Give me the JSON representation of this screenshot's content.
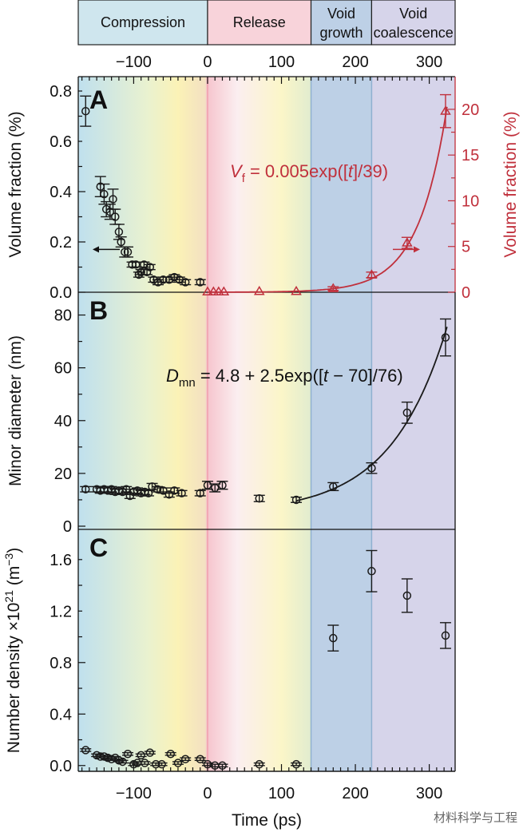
{
  "phases": [
    {
      "label_lines": [
        "Compression"
      ],
      "t_start": -175,
      "t_end": 0,
      "color": "#cfe8f0"
    },
    {
      "label_lines": [
        "Release"
      ],
      "t_start": 0,
      "t_end": 140,
      "color": "#f6cdd6"
    },
    {
      "label_lines": [
        "Void",
        "growth"
      ],
      "t_start": 140,
      "t_end": 222,
      "color": "#bdd0e6"
    },
    {
      "label_lines": [
        "Void",
        "coalescence"
      ],
      "t_start": 222,
      "t_end": 335,
      "color": "#d6d4ea"
    }
  ],
  "colors": {
    "left_series": "#1a1a1a",
    "right_series": "#c0303c",
    "divider": "#8fb0d0"
  },
  "time_axis": {
    "label": "Time (ps)",
    "range": [
      -175,
      335
    ],
    "ticks": [
      -100,
      0,
      100,
      200,
      300
    ],
    "tick_labels": [
      "−100",
      "0",
      "100",
      "200",
      "300"
    ]
  },
  "watermark": "材料科学与工程",
  "chart_data": [
    {
      "panel": "A",
      "type": "scatter",
      "ylabel": "Volume fraction (%)",
      "ylim": [
        0,
        0.8
      ],
      "yticks": [
        0.0,
        0.2,
        0.4,
        0.6,
        0.8
      ],
      "ytick_labels": [
        "0.0",
        "0.2",
        "0.4",
        "0.6",
        "0.8"
      ],
      "y2label": "Volume fraction (%)",
      "y2lim": [
        0,
        22
      ],
      "y2ticks": [
        0,
        5,
        10,
        15,
        20
      ],
      "y2tick_labels": [
        "0",
        "5",
        "10",
        "15",
        "20"
      ],
      "series": [
        {
          "name": "left axis",
          "marker": "circle",
          "axis": "left",
          "points": [
            {
              "t": -165,
              "v": 0.72,
              "err": 0.06
            },
            {
              "t": -145,
              "v": 0.42,
              "err": 0.04
            },
            {
              "t": -140,
              "v": 0.39,
              "err": 0.04
            },
            {
              "t": -137,
              "v": 0.33,
              "err": 0.03
            },
            {
              "t": -132,
              "v": 0.32,
              "err": 0.03
            },
            {
              "t": -128,
              "v": 0.37,
              "err": 0.04
            },
            {
              "t": -125,
              "v": 0.3,
              "err": 0.03
            },
            {
              "t": -120,
              "v": 0.24,
              "err": 0.03
            },
            {
              "t": -117,
              "v": 0.2,
              "err": 0.02
            },
            {
              "t": -112,
              "v": 0.16,
              "err": 0.02
            },
            {
              "t": -108,
              "v": 0.16,
              "err": 0.02
            },
            {
              "t": -102,
              "v": 0.11,
              "err": 0.01
            },
            {
              "t": -97,
              "v": 0.11,
              "err": 0.01
            },
            {
              "t": -93,
              "v": 0.07,
              "err": 0.01
            },
            {
              "t": -90,
              "v": 0.08,
              "err": 0.01
            },
            {
              "t": -86,
              "v": 0.11,
              "err": 0.01
            },
            {
              "t": -82,
              "v": 0.08,
              "err": 0.01
            },
            {
              "t": -78,
              "v": 0.1,
              "err": 0.01
            },
            {
              "t": -73,
              "v": 0.05,
              "err": 0.01
            },
            {
              "t": -67,
              "v": 0.04,
              "err": 0.01
            },
            {
              "t": -60,
              "v": 0.05,
              "err": 0.01
            },
            {
              "t": -52,
              "v": 0.05,
              "err": 0.01
            },
            {
              "t": -45,
              "v": 0.06,
              "err": 0.01
            },
            {
              "t": -38,
              "v": 0.05,
              "err": 0.01
            },
            {
              "t": -30,
              "v": 0.04,
              "err": 0.01
            },
            {
              "t": -10,
              "v": 0.04,
              "err": 0.01
            }
          ]
        },
        {
          "name": "right axis",
          "marker": "triangle",
          "axis": "right",
          "points": [
            {
              "t": 0,
              "v": 0.05,
              "err": 0
            },
            {
              "t": 8,
              "v": 0.05,
              "err": 0
            },
            {
              "t": 15,
              "v": 0.05,
              "err": 0
            },
            {
              "t": 22,
              "v": 0.05,
              "err": 0
            },
            {
              "t": 70,
              "v": 0.1,
              "err": 0
            },
            {
              "t": 120,
              "v": 0.1,
              "err": 0
            },
            {
              "t": 170,
              "v": 0.4,
              "err": 0.2
            },
            {
              "t": 222,
              "v": 1.9,
              "err": 0.3
            },
            {
              "t": 270,
              "v": 5.4,
              "err": 0.6
            },
            {
              "t": 322,
              "v": 19.8,
              "err": 1.8
            }
          ]
        }
      ],
      "fit": {
        "axis": "right",
        "t_from": 0,
        "t_to": 325,
        "a": 0.005,
        "t0": 0,
        "tau": 39,
        "c": 0
      },
      "equation": {
        "lhs": "V",
        "lhs_sub": "f",
        "rhs": " = 0.005exp([",
        "var": "t",
        "rhs2": "]/39)"
      }
    },
    {
      "panel": "B",
      "type": "scatter",
      "ylabel": "Minor diameter (nm)",
      "ylim": [
        0,
        85
      ],
      "yticks": [
        0,
        20,
        40,
        60,
        80
      ],
      "ytick_labels": [
        "0",
        "20",
        "40",
        "60",
        "80"
      ],
      "series": [
        {
          "name": "minor diameter",
          "marker": "circle",
          "axis": "left",
          "points": [
            {
              "t": -165,
              "v": 14,
              "err": 1
            },
            {
              "t": -150,
              "v": 14,
              "err": 1
            },
            {
              "t": -145,
              "v": 13.5,
              "err": 1
            },
            {
              "t": -140,
              "v": 14,
              "err": 1
            },
            {
              "t": -135,
              "v": 13.5,
              "err": 1
            },
            {
              "t": -130,
              "v": 14,
              "err": 1
            },
            {
              "t": -125,
              "v": 13,
              "err": 1
            },
            {
              "t": -120,
              "v": 13.5,
              "err": 1
            },
            {
              "t": -115,
              "v": 13,
              "err": 1
            },
            {
              "t": -110,
              "v": 14,
              "err": 1
            },
            {
              "t": -105,
              "v": 11.5,
              "err": 1
            },
            {
              "t": -100,
              "v": 13,
              "err": 1
            },
            {
              "t": -95,
              "v": 13.5,
              "err": 1
            },
            {
              "t": -90,
              "v": 12.5,
              "err": 1
            },
            {
              "t": -85,
              "v": 13,
              "err": 1
            },
            {
              "t": -80,
              "v": 12.5,
              "err": 1
            },
            {
              "t": -75,
              "v": 15,
              "err": 1.2
            },
            {
              "t": -68,
              "v": 14,
              "err": 1
            },
            {
              "t": -60,
              "v": 13.5,
              "err": 1
            },
            {
              "t": -52,
              "v": 12,
              "err": 1
            },
            {
              "t": -45,
              "v": 13.5,
              "err": 1
            },
            {
              "t": -35,
              "v": 12.5,
              "err": 1
            },
            {
              "t": -10,
              "v": 12.5,
              "err": 1
            },
            {
              "t": 0,
              "v": 15.5,
              "err": 1.5
            },
            {
              "t": 10,
              "v": 14.5,
              "err": 1.5
            },
            {
              "t": 20,
              "v": 15.5,
              "err": 1.5
            },
            {
              "t": 70,
              "v": 10.5,
              "err": 1.2
            },
            {
              "t": 120,
              "v": 10,
              "err": 1
            },
            {
              "t": 170,
              "v": 15,
              "err": 1.5
            },
            {
              "t": 222,
              "v": 22,
              "err": 2
            },
            {
              "t": 270,
              "v": 43,
              "err": 4
            },
            {
              "t": 322,
              "v": 71.5,
              "err": 7
            }
          ]
        }
      ],
      "fit": {
        "axis": "left",
        "t_from": 120,
        "t_to": 325,
        "a": 2.5,
        "t0": 70,
        "tau": 76,
        "c": 4.8
      },
      "equation": {
        "lhs": "D",
        "lhs_sub": "mn",
        "rhs": " = 4.8 + 2.5exp([",
        "var": "t",
        "rhs2": " − 70]/76)"
      }
    },
    {
      "panel": "C",
      "type": "scatter",
      "ylabel": "Number density ×10",
      "ylabel_sup": "21",
      "ylabel_unit": " (m",
      "ylabel_unit_sup": "−3",
      "ylabel_close": ")",
      "ylim": [
        -0.02,
        1.76
      ],
      "yticks": [
        0.0,
        0.4,
        0.8,
        1.2,
        1.6
      ],
      "ytick_labels": [
        "0.0",
        "0.4",
        "0.8",
        "1.2",
        "1.6"
      ],
      "series": [
        {
          "name": "number density",
          "marker": "circle",
          "axis": "left",
          "points": [
            {
              "t": -165,
              "v": 0.12,
              "err": 0.01
            },
            {
              "t": -150,
              "v": 0.08,
              "err": 0.01
            },
            {
              "t": -145,
              "v": 0.07,
              "err": 0.01
            },
            {
              "t": -140,
              "v": 0.07,
              "err": 0.01
            },
            {
              "t": -135,
              "v": 0.06,
              "err": 0.01
            },
            {
              "t": -130,
              "v": 0.05,
              "err": 0.01
            },
            {
              "t": -125,
              "v": 0.06,
              "err": 0.01
            },
            {
              "t": -120,
              "v": 0.04,
              "err": 0.01
            },
            {
              "t": -115,
              "v": 0.03,
              "err": 0.01
            },
            {
              "t": -108,
              "v": 0.09,
              "err": 0.01
            },
            {
              "t": -100,
              "v": 0.01,
              "err": 0.01
            },
            {
              "t": -95,
              "v": 0.02,
              "err": 0.01
            },
            {
              "t": -90,
              "v": 0.08,
              "err": 0.01
            },
            {
              "t": -85,
              "v": 0.02,
              "err": 0.01
            },
            {
              "t": -78,
              "v": 0.1,
              "err": 0.01
            },
            {
              "t": -70,
              "v": 0.01,
              "err": 0.01
            },
            {
              "t": -62,
              "v": 0.01,
              "err": 0.01
            },
            {
              "t": -50,
              "v": 0.09,
              "err": 0.01
            },
            {
              "t": -40,
              "v": 0.02,
              "err": 0.01
            },
            {
              "t": -30,
              "v": 0.05,
              "err": 0.01
            },
            {
              "t": -10,
              "v": 0.05,
              "err": 0.01
            },
            {
              "t": 0,
              "v": 0.01,
              "err": 0.01
            },
            {
              "t": 10,
              "v": 0.0,
              "err": 0.01
            },
            {
              "t": 20,
              "v": 0.0,
              "err": 0.01
            },
            {
              "t": 70,
              "v": 0.01,
              "err": 0.01
            },
            {
              "t": 120,
              "v": 0.01,
              "err": 0.01
            },
            {
              "t": 170,
              "v": 0.99,
              "err": 0.1
            },
            {
              "t": 222,
              "v": 1.51,
              "err": 0.16
            },
            {
              "t": 270,
              "v": 1.32,
              "err": 0.13
            },
            {
              "t": 322,
              "v": 1.01,
              "err": 0.1
            }
          ]
        }
      ]
    }
  ]
}
